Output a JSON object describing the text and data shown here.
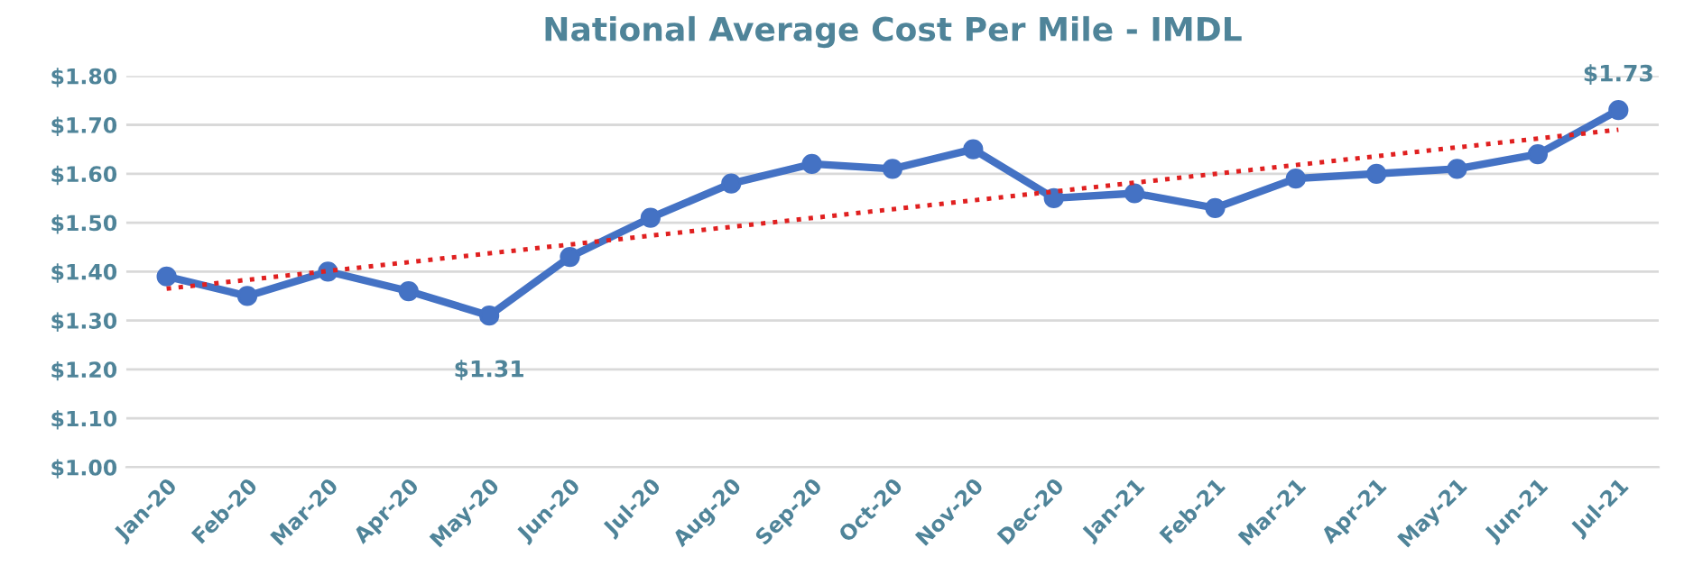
{
  "chart_data": {
    "type": "line",
    "title": "National Average Cost Per Mile - IMDL",
    "categories": [
      "Jan-20",
      "Feb-20",
      "Mar-20",
      "Apr-20",
      "May-20",
      "Jun-20",
      "Jul-20",
      "Aug-20",
      "Sep-20",
      "Oct-20",
      "Nov-20",
      "Dec-20",
      "Jan-21",
      "Feb-21",
      "Mar-21",
      "Apr-21",
      "May-21",
      "Jun-21",
      "Jul-21"
    ],
    "series": [
      {
        "color": "#4472c4",
        "marker": "circle",
        "line_style": "solid",
        "values": [
          1.39,
          1.35,
          1.4,
          1.36,
          1.31,
          1.43,
          1.51,
          1.58,
          1.62,
          1.61,
          1.65,
          1.55,
          1.56,
          1.53,
          1.59,
          1.6,
          1.61,
          1.64,
          1.73
        ],
        "value_labels": [
          null,
          null,
          null,
          null,
          "$1.31",
          null,
          null,
          null,
          null,
          null,
          null,
          null,
          null,
          null,
          null,
          null,
          null,
          null,
          "$1.73"
        ]
      },
      {
        "color": "#e02020",
        "marker": "none",
        "line_style": "dotted",
        "x": [
          "Jan-20",
          "Jul-21"
        ],
        "values": [
          1.365,
          1.69
        ]
      }
    ],
    "ylim": [
      1.0,
      1.8
    ],
    "yticks": [
      {
        "value": 1.0,
        "label": "$1.00"
      },
      {
        "value": 1.1,
        "label": "$1.10"
      },
      {
        "value": 1.2,
        "label": "$1.20"
      },
      {
        "value": 1.3,
        "label": "$1.30"
      },
      {
        "value": 1.4,
        "label": "$1.40"
      },
      {
        "value": 1.5,
        "label": "$1.50"
      },
      {
        "value": 1.6,
        "label": "$1.60"
      },
      {
        "value": 1.7,
        "label": "$1.70"
      },
      {
        "value": 1.8,
        "label": "$1.80"
      }
    ],
    "grid": "y",
    "legend": false
  }
}
